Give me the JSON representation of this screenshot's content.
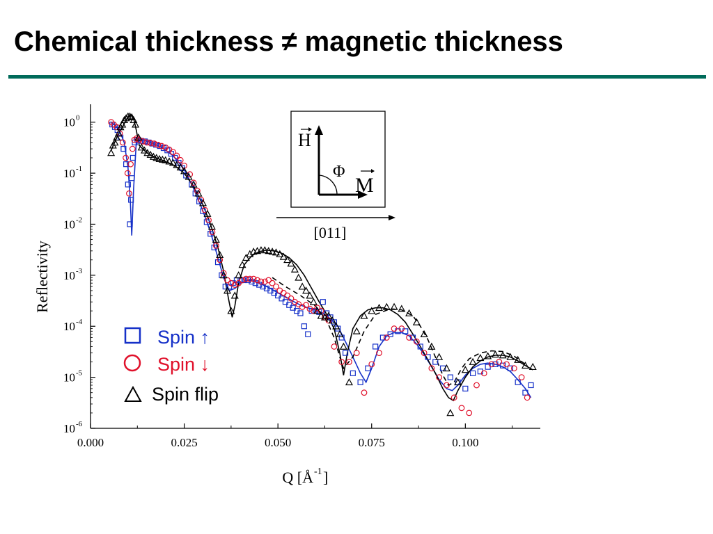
{
  "slide": {
    "title": "Chemical thickness ≠ magnetic thickness"
  },
  "colors": {
    "title_rule": "#006b5a",
    "spin_up": "#1530c8",
    "spin_down": "#e0102a",
    "spin_flip": "#000000"
  },
  "inset": {
    "h_label": "H",
    "m_label": "M",
    "angle_label": "Φ",
    "direction_label": "[011]"
  },
  "chart_data": {
    "type": "scatter",
    "title": "",
    "xlabel": "Q [Å",
    "xlabel_sup": "-1",
    "xlabel_close": "]",
    "ylabel": "Reflectivity",
    "xlim": [
      0.0,
      0.12
    ],
    "ylim_log10": [
      -6,
      0.35
    ],
    "yscale": "log",
    "x_ticks": [
      0.0,
      0.025,
      0.05,
      0.075,
      0.1
    ],
    "x_tick_labels": [
      "0.000",
      "0.025",
      "0.050",
      "0.075",
      "0.100"
    ],
    "y_ticks_log10": [
      0,
      -1,
      -2,
      -3,
      -4,
      -5,
      -6
    ],
    "y_tick_base": "10",
    "y_tick_exponents": [
      "0",
      "-1",
      "-2",
      "-3",
      "-4",
      "-5",
      "-6"
    ],
    "legend": {
      "placement": "lower-left",
      "entries": [
        {
          "symbol": "□",
          "label": "Spin ↑",
          "color": "#1530c8"
        },
        {
          "symbol": "○",
          "label": "Spin ↓",
          "color": "#e0102a"
        },
        {
          "symbol": "△",
          "label": "Spin flip",
          "color": "#000000"
        }
      ]
    },
    "series": [
      {
        "name": "Spin ↑",
        "marker": "square",
        "color": "#1530c8",
        "x": [
          0.0058,
          0.0065,
          0.0072,
          0.008,
          0.0088,
          0.0095,
          0.01,
          0.0105,
          0.0108,
          0.011,
          0.0113,
          0.0118,
          0.0125,
          0.0135,
          0.0145,
          0.0155,
          0.0165,
          0.0175,
          0.0185,
          0.0195,
          0.0205,
          0.0215,
          0.0225,
          0.0235,
          0.0245,
          0.0255,
          0.027,
          0.028,
          0.029,
          0.03,
          0.031,
          0.032,
          0.033,
          0.034,
          0.035,
          0.036,
          0.037,
          0.038,
          0.039,
          0.04,
          0.041,
          0.042,
          0.043,
          0.044,
          0.045,
          0.046,
          0.047,
          0.048,
          0.049,
          0.05,
          0.051,
          0.052,
          0.053,
          0.054,
          0.055,
          0.056,
          0.057,
          0.058,
          0.059,
          0.06,
          0.061,
          0.062,
          0.063,
          0.064,
          0.065,
          0.066,
          0.067,
          0.068,
          0.07,
          0.072,
          0.074,
          0.076,
          0.078,
          0.08,
          0.082,
          0.084,
          0.086,
          0.088,
          0.09,
          0.092,
          0.094,
          0.096,
          0.098,
          0.1,
          0.102,
          0.104,
          0.106,
          0.108,
          0.11,
          0.112,
          0.114,
          0.116,
          0.1175
        ],
        "y": [
          0.9,
          0.8,
          0.7,
          0.5,
          0.3,
          0.15,
          0.06,
          0.01,
          0.03,
          0.08,
          0.2,
          0.4,
          0.45,
          0.43,
          0.42,
          0.4,
          0.38,
          0.36,
          0.34,
          0.31,
          0.28,
          0.24,
          0.2,
          0.16,
          0.125,
          0.09,
          0.06,
          0.04,
          0.028,
          0.018,
          0.011,
          0.0065,
          0.0035,
          0.0018,
          0.001,
          0.0006,
          0.0006,
          0.0007,
          0.0008,
          0.0008,
          0.0008,
          0.0008,
          0.00075,
          0.0007,
          0.00065,
          0.0006,
          0.00055,
          0.0005,
          0.00045,
          0.0004,
          0.00035,
          0.0003,
          0.00026,
          0.00023,
          0.0002,
          0.00018,
          0.0001,
          7e-05,
          0.0002,
          0.0002,
          0.00019,
          0.0003,
          0.00018,
          0.00015,
          0.00012,
          9e-05,
          6e-05,
          3e-05,
          1.2e-05,
          8e-06,
          1.5e-05,
          4e-05,
          6e-05,
          7e-05,
          8e-05,
          8e-05,
          6e-05,
          4e-05,
          2.5e-05,
          2e-05,
          1.5e-05,
          1e-05,
          8e-06,
          6e-06,
          1.2e-05,
          1.3e-05,
          1.6e-05,
          1.8e-05,
          1.7e-05,
          1.5e-05,
          8e-06,
          5e-06,
          7e-06
        ]
      },
      {
        "name": "Spin ↓",
        "marker": "circle",
        "color": "#e0102a",
        "x": [
          0.0055,
          0.0062,
          0.007,
          0.0078,
          0.0086,
          0.0094,
          0.0099,
          0.0103,
          0.0107,
          0.0112,
          0.0117,
          0.0123,
          0.013,
          0.014,
          0.015,
          0.016,
          0.017,
          0.018,
          0.019,
          0.02,
          0.021,
          0.022,
          0.023,
          0.024,
          0.025,
          0.0265,
          0.0275,
          0.0285,
          0.0295,
          0.0305,
          0.0315,
          0.0325,
          0.0335,
          0.0345,
          0.0355,
          0.0365,
          0.0375,
          0.0385,
          0.0395,
          0.0405,
          0.0415,
          0.0425,
          0.0435,
          0.0445,
          0.0455,
          0.0465,
          0.0475,
          0.0485,
          0.0495,
          0.0505,
          0.0515,
          0.0525,
          0.0535,
          0.0545,
          0.0555,
          0.0565,
          0.0575,
          0.0585,
          0.0595,
          0.0605,
          0.0615,
          0.0625,
          0.0635,
          0.065,
          0.067,
          0.069,
          0.071,
          0.073,
          0.075,
          0.077,
          0.079,
          0.081,
          0.083,
          0.085,
          0.087,
          0.089,
          0.091,
          0.093,
          0.095,
          0.097,
          0.099,
          0.101,
          0.103,
          0.105,
          0.107,
          0.109,
          0.111,
          0.113,
          0.115,
          0.1165
        ],
        "y": [
          1.0,
          0.9,
          0.8,
          0.6,
          0.4,
          0.2,
          0.1,
          0.04,
          0.15,
          0.3,
          0.45,
          0.48,
          0.45,
          0.42,
          0.4,
          0.39,
          0.38,
          0.36,
          0.34,
          0.32,
          0.29,
          0.26,
          0.22,
          0.18,
          0.14,
          0.095,
          0.065,
          0.045,
          0.03,
          0.019,
          0.012,
          0.007,
          0.0038,
          0.002,
          0.0011,
          0.0008,
          0.0007,
          0.00065,
          0.0007,
          0.0008,
          0.00085,
          0.00085,
          0.00085,
          0.0008,
          0.00075,
          0.00075,
          0.0008,
          0.0007,
          0.0006,
          0.0005,
          0.00045,
          0.0004,
          0.00035,
          0.0003,
          0.00027,
          0.00024,
          0.00026,
          0.00022,
          0.0002,
          0.00023,
          0.0002,
          0.00015,
          0.00013,
          4e-05,
          2e-05,
          2e-05,
          3e-05,
          5e-06,
          1.8e-05,
          3e-05,
          6e-05,
          9e-05,
          9e-05,
          6e-05,
          5e-05,
          3e-05,
          1.5e-05,
          1e-05,
          7e-06,
          4e-06,
          2.5e-06,
          2e-06,
          7e-06,
          1.2e-05,
          1.8e-05,
          2e-05,
          1.8e-05,
          1.5e-05,
          1e-05,
          4e-06
        ]
      },
      {
        "name": "Spin flip",
        "marker": "triangle",
        "color": "#000000",
        "x": [
          0.0055,
          0.006,
          0.0065,
          0.007,
          0.0075,
          0.008,
          0.0085,
          0.009,
          0.0095,
          0.01,
          0.0105,
          0.011,
          0.0115,
          0.012,
          0.0128,
          0.0136,
          0.0144,
          0.0152,
          0.016,
          0.0168,
          0.0176,
          0.0184,
          0.0192,
          0.02,
          0.021,
          0.022,
          0.023,
          0.024,
          0.025,
          0.0262,
          0.0275,
          0.0288,
          0.03,
          0.0312,
          0.0324,
          0.0335,
          0.0345,
          0.0355,
          0.0365,
          0.0375,
          0.0385,
          0.0395,
          0.0405,
          0.0415,
          0.0425,
          0.0435,
          0.0445,
          0.0455,
          0.0465,
          0.0475,
          0.0485,
          0.0495,
          0.0505,
          0.0515,
          0.0525,
          0.0535,
          0.0545,
          0.0555,
          0.0565,
          0.0575,
          0.0585,
          0.0595,
          0.0605,
          0.0615,
          0.0625,
          0.0635,
          0.0645,
          0.0655,
          0.0665,
          0.0675,
          0.069,
          0.071,
          0.073,
          0.075,
          0.077,
          0.079,
          0.081,
          0.083,
          0.085,
          0.087,
          0.089,
          0.091,
          0.093,
          0.095,
          0.096,
          0.098,
          0.1,
          0.102,
          0.104,
          0.106,
          0.108,
          0.11,
          0.112,
          0.114,
          0.116,
          0.118
        ],
        "y": [
          0.25,
          0.35,
          0.4,
          0.5,
          0.6,
          0.8,
          0.9,
          1.1,
          1.2,
          1.3,
          1.3,
          1.25,
          1.1,
          0.9,
          0.5,
          0.32,
          0.28,
          0.25,
          0.23,
          0.21,
          0.2,
          0.19,
          0.185,
          0.18,
          0.17,
          0.16,
          0.145,
          0.13,
          0.11,
          0.085,
          0.06,
          0.04,
          0.026,
          0.016,
          0.009,
          0.005,
          0.0025,
          0.001,
          0.0005,
          0.0002,
          0.0004,
          0.001,
          0.0016,
          0.0022,
          0.0026,
          0.0029,
          0.003,
          0.0031,
          0.0031,
          0.003,
          0.0029,
          0.0028,
          0.0026,
          0.0023,
          0.002,
          0.0017,
          0.0013,
          0.0009,
          0.0006,
          0.0005,
          0.0004,
          0.0003,
          0.0002,
          0.00016,
          0.00015,
          0.00016,
          0.00013,
          0.0001,
          7e-05,
          4e-05,
          8e-06,
          8e-05,
          0.00016,
          0.0002,
          0.00023,
          0.00024,
          0.00024,
          0.00022,
          0.00018,
          0.00012,
          7e-05,
          4e-05,
          2.5e-05,
          1.5e-05,
          2e-06,
          8e-06,
          1.4e-05,
          2e-05,
          2.4e-05,
          2.6e-05,
          2.8e-05,
          2.7e-05,
          2.5e-05,
          2.2e-05,
          1.7e-05,
          1.6e-05
        ]
      }
    ],
    "fits": [
      {
        "style": "solid",
        "color": "#1530c8",
        "x": [
          0.0055,
          0.0075,
          0.009,
          0.01,
          0.0106,
          0.011,
          0.0115,
          0.0122,
          0.0135,
          0.016,
          0.019,
          0.022,
          0.025,
          0.0275,
          0.03,
          0.032,
          0.034,
          0.0355,
          0.037,
          0.0385,
          0.04,
          0.042,
          0.044,
          0.046,
          0.048,
          0.05,
          0.052,
          0.054,
          0.056,
          0.058,
          0.06,
          0.062,
          0.064,
          0.066,
          0.068,
          0.07,
          0.072,
          0.0735,
          0.075,
          0.077,
          0.079,
          0.081,
          0.083,
          0.085,
          0.087,
          0.089,
          0.091,
          0.093,
          0.095,
          0.0965,
          0.098,
          0.1,
          0.102,
          0.104,
          0.106,
          0.108,
          0.11,
          0.112,
          0.114,
          0.116,
          0.1175
        ],
        "y": [
          1.0,
          0.75,
          0.4,
          0.13,
          0.03,
          0.006,
          0.05,
          0.4,
          0.46,
          0.4,
          0.32,
          0.22,
          0.12,
          0.05,
          0.018,
          0.007,
          0.0022,
          0.0009,
          0.0005,
          0.00055,
          0.0007,
          0.0008,
          0.00075,
          0.00065,
          0.00055,
          0.00045,
          0.00038,
          0.00031,
          0.00026,
          0.00023,
          0.00021,
          0.00018,
          0.00014,
          0.0001,
          5e-05,
          2.5e-05,
          1.2e-05,
          8e-06,
          1.5e-05,
          4e-05,
          6.5e-05,
          7.5e-05,
          7.5e-05,
          6.5e-05,
          4.5e-05,
          2.8e-05,
          1.6e-05,
          9e-06,
          6e-06,
          5.5e-06,
          7e-06,
          1.1e-05,
          1.5e-05,
          1.8e-05,
          1.9e-05,
          1.8e-05,
          1.6e-05,
          1.3e-05,
          9e-06,
          6e-06,
          4e-06
        ]
      },
      {
        "style": "dashed",
        "color": "#000000",
        "x": [
          0.0485,
          0.052,
          0.056,
          0.06,
          0.063,
          0.065,
          0.0665,
          0.0675,
          0.07,
          0.073,
          0.076,
          0.08,
          0.083,
          0.086,
          0.088,
          0.09,
          0.092,
          0.094,
          0.0955,
          0.097,
          0.099,
          0.101,
          0.104,
          0.107,
          0.11,
          0.113,
          0.116
        ],
        "y": [
          0.0009,
          0.0006,
          0.0004,
          0.00025,
          0.00013,
          6e-05,
          2.5e-05,
          1.5e-05,
          2.5e-05,
          8e-05,
          0.00017,
          0.00022,
          0.00021,
          0.00016,
          0.0001,
          5.5e-05,
          2.5e-05,
          1.1e-05,
          7e-06,
          8e-06,
          1.5e-05,
          2.3e-05,
          3e-05,
          3.3e-05,
          3.2e-05,
          2.6e-05,
          1.8e-05
        ]
      },
      {
        "style": "solid",
        "color": "#000000",
        "x": [
          0.0055,
          0.007,
          0.0085,
          0.0095,
          0.0105,
          0.011,
          0.0115,
          0.0122,
          0.013,
          0.015,
          0.0175,
          0.02,
          0.0225,
          0.025,
          0.0275,
          0.03,
          0.032,
          0.034,
          0.0355,
          0.0368,
          0.0378,
          0.0385,
          0.0395,
          0.041,
          0.043,
          0.045,
          0.047,
          0.049,
          0.051,
          0.053,
          0.055,
          0.057,
          0.059,
          0.061,
          0.063,
          0.065,
          0.0665,
          0.0675,
          0.0685,
          0.07,
          0.072,
          0.074,
          0.076,
          0.078,
          0.08,
          0.082,
          0.084,
          0.086,
          0.088,
          0.09,
          0.092,
          0.094,
          0.0955,
          0.0968,
          0.098,
          0.1,
          0.102,
          0.104,
          0.106,
          0.108,
          0.11,
          0.112,
          0.114,
          0.116,
          0.118
        ],
        "y": [
          0.28,
          0.5,
          0.8,
          1.1,
          1.35,
          1.4,
          1.2,
          0.7,
          0.35,
          0.25,
          0.2,
          0.17,
          0.14,
          0.1,
          0.055,
          0.024,
          0.01,
          0.0035,
          0.0012,
          0.00035,
          0.00015,
          0.00025,
          0.0007,
          0.0016,
          0.0024,
          0.0029,
          0.0031,
          0.003,
          0.0027,
          0.0022,
          0.0016,
          0.001,
          0.00055,
          0.0003,
          0.00017,
          9e-05,
          3e-05,
          1.1e-05,
          3e-05,
          9e-05,
          0.00016,
          0.00021,
          0.00023,
          0.00023,
          0.00021,
          0.00017,
          0.00012,
          7e-05,
          4e-05,
          2.2e-05,
          1.2e-05,
          6e-06,
          4e-06,
          3.5e-06,
          5.5e-06,
          1e-05,
          1.6e-05,
          2.1e-05,
          2.5e-05,
          2.7e-05,
          2.7e-05,
          2.5e-05,
          2.1e-05,
          1.7e-05,
          1.4e-05
        ]
      }
    ]
  }
}
